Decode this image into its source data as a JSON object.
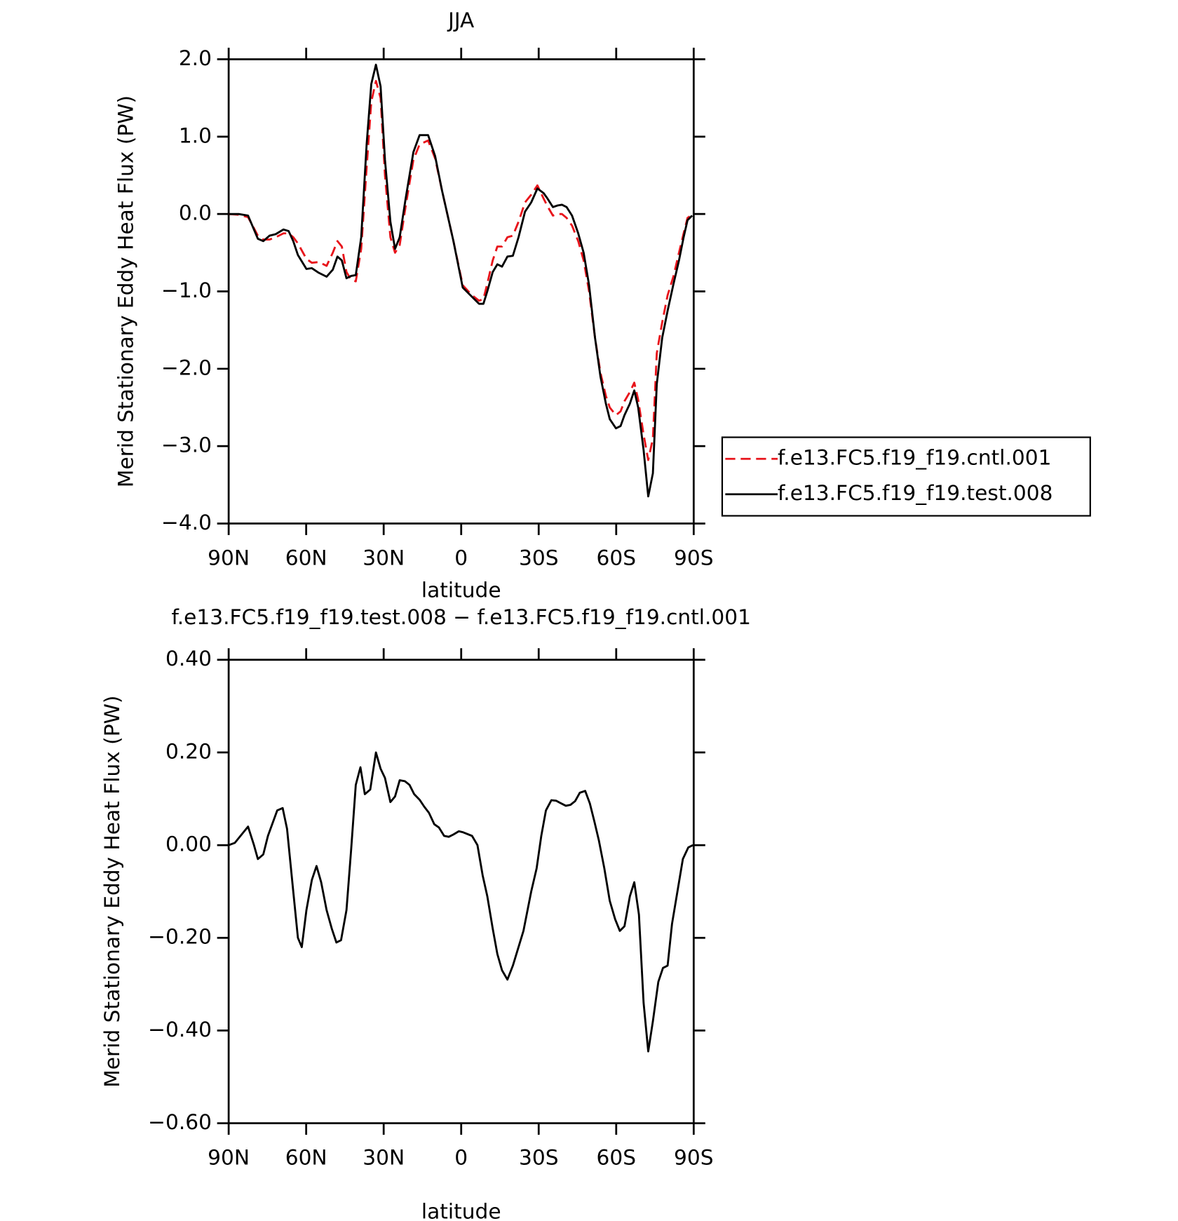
{
  "chart_data": [
    {
      "type": "line",
      "title": "JJA",
      "xlabel": "latitude",
      "ylabel": "Merid Stationary Eddy Heat Flux (PW)",
      "legend": "right",
      "xlim": [
        90,
        -90
      ],
      "xticks": [
        {
          "value": 90,
          "label": "90N"
        },
        {
          "value": 60,
          "label": "60N"
        },
        {
          "value": 30,
          "label": "30N"
        },
        0,
        {
          "value": -30,
          "label": "30S"
        },
        {
          "value": -60,
          "label": "60S"
        },
        {
          "value": -90,
          "label": "90S"
        }
      ],
      "ylim": [
        -4,
        2
      ],
      "yticks": [
        {
          "value": 2,
          "label": "2.0"
        },
        {
          "value": 1,
          "label": "1.0"
        },
        {
          "value": 0,
          "label": "0.0"
        },
        {
          "value": -1,
          "label": "−1.0"
        },
        {
          "value": -2,
          "label": "−2.0"
        },
        {
          "value": -3,
          "label": "−3.0"
        },
        {
          "value": -4,
          "label": "−4.0"
        }
      ],
      "x": [
        90,
        86.1,
        82.5,
        78.7,
        76.6,
        74.2,
        71.8,
        68.8,
        66.8,
        65.0,
        63.2,
        59.9,
        57.8,
        55.1,
        52.1,
        49.7,
        47.9,
        46.2,
        44.4,
        42.6,
        40.8,
        38.7,
        36.6,
        34.8,
        33.0,
        31.2,
        29.5,
        27.4,
        25.6,
        23.8,
        21.5,
        18.5,
        16.1,
        12.8,
        10.1,
        7.4,
        3.0,
        -0.6,
        -4.2,
        -6.9,
        -8.6,
        -10.1,
        -12.2,
        -14.0,
        -15.8,
        -17.9,
        -20.0,
        -22.2,
        -24.7,
        -27.1,
        -29.5,
        -31.9,
        -33.4,
        -35.5,
        -37.3,
        -39.0,
        -40.8,
        -42.9,
        -45.3,
        -47.4,
        -49.5,
        -51.8,
        -53.9,
        -56.0,
        -57.5,
        -59.9,
        -61.7,
        -63.2,
        -65.3,
        -67.0,
        -68.5,
        -70.6,
        -72.4,
        -74.2,
        -75.7,
        -77.8,
        -79.9,
        -82.2,
        -84.3,
        -86.1,
        -87.6,
        -89.4
      ],
      "series": [
        {
          "name": "f.e13.FC5.f19_f19.cntl.001",
          "color": "#e8141b",
          "style": "dashed",
          "values": [
            0,
            -0.01,
            -0.04,
            -0.28,
            -0.33,
            -0.33,
            -0.3,
            -0.25,
            -0.25,
            -0.3,
            -0.38,
            -0.58,
            -0.63,
            -0.62,
            -0.67,
            -0.5,
            -0.35,
            -0.42,
            -0.75,
            -0.85,
            -0.87,
            -0.45,
            0.6,
            1.45,
            1.72,
            1.5,
            0.5,
            -0.3,
            -0.5,
            -0.4,
            0.1,
            0.7,
            0.9,
            0.95,
            0.72,
            0.3,
            -0.35,
            -0.92,
            -1.05,
            -1.12,
            -1.1,
            -0.9,
            -0.6,
            -0.42,
            -0.42,
            -0.3,
            -0.28,
            -0.1,
            0.15,
            0.25,
            0.37,
            0.2,
            0.1,
            -0.02,
            0.0,
            0.0,
            -0.05,
            -0.15,
            -0.35,
            -0.6,
            -1.0,
            -1.6,
            -2.05,
            -2.35,
            -2.5,
            -2.6,
            -2.55,
            -2.42,
            -2.3,
            -2.18,
            -2.4,
            -2.85,
            -3.18,
            -2.9,
            -1.8,
            -1.4,
            -1.05,
            -0.8,
            -0.5,
            -0.25,
            -0.05,
            -0.01
          ]
        },
        {
          "name": "f.e13.FC5.f19_f19.test.008",
          "color": "#000000",
          "style": "solid",
          "values": [
            0,
            0.0,
            -0.02,
            -0.32,
            -0.35,
            -0.28,
            -0.26,
            -0.2,
            -0.22,
            -0.35,
            -0.53,
            -0.71,
            -0.7,
            -0.76,
            -0.81,
            -0.72,
            -0.55,
            -0.6,
            -0.83,
            -0.8,
            -0.79,
            -0.3,
            0.9,
            1.68,
            1.93,
            1.65,
            0.7,
            -0.1,
            -0.45,
            -0.3,
            0.2,
            0.8,
            1.02,
            1.02,
            0.75,
            0.3,
            -0.35,
            -0.95,
            -1.07,
            -1.16,
            -1.16,
            -1.0,
            -0.75,
            -0.65,
            -0.68,
            -0.55,
            -0.54,
            -0.3,
            0.03,
            0.15,
            0.33,
            0.27,
            0.2,
            0.09,
            0.11,
            0.12,
            0.09,
            -0.02,
            -0.25,
            -0.5,
            -0.92,
            -1.6,
            -2.1,
            -2.45,
            -2.65,
            -2.77,
            -2.74,
            -2.6,
            -2.45,
            -2.28,
            -2.5,
            -3.05,
            -3.65,
            -3.35,
            -2.2,
            -1.6,
            -1.25,
            -0.9,
            -0.6,
            -0.3,
            -0.08,
            -0.02
          ]
        }
      ]
    },
    {
      "type": "line",
      "title": "f.e13.FC5.f19_f19.test.008 − f.e13.FC5.f19_f19.cntl.001",
      "xlabel": "latitude",
      "ylabel": "Merid Stationary Eddy Heat Flux (PW)",
      "xlim": [
        90,
        -90
      ],
      "xticks": [
        {
          "value": 90,
          "label": "90N"
        },
        {
          "value": 60,
          "label": "60N"
        },
        {
          "value": 30,
          "label": "30N"
        },
        0,
        {
          "value": -30,
          "label": "30S"
        },
        {
          "value": -60,
          "label": "60S"
        },
        {
          "value": -90,
          "label": "90S"
        }
      ],
      "ylim": [
        -0.6,
        0.4
      ],
      "yticks": [
        {
          "value": 0.4,
          "label": "0.40"
        },
        {
          "value": 0.2,
          "label": "0.20"
        },
        {
          "value": 0,
          "label": "0.00"
        },
        {
          "value": -0.2,
          "label": "−0.20"
        },
        {
          "value": -0.4,
          "label": "−0.40"
        },
        {
          "value": -0.6,
          "label": "−0.60"
        }
      ],
      "x": [
        90,
        87.6,
        82.5,
        80.2,
        78.7,
        76.6,
        74.8,
        71.2,
        69.1,
        67.4,
        65.0,
        63.2,
        61.7,
        59.9,
        57.8,
        56.0,
        54.2,
        52.1,
        50.1,
        48.3,
        46.5,
        44.4,
        42.6,
        40.8,
        39.0,
        37.3,
        35.2,
        33.0,
        31.2,
        29.5,
        27.4,
        25.6,
        23.8,
        21.8,
        20.0,
        18.2,
        16.1,
        14.3,
        12.5,
        10.4,
        8.6,
        6.6,
        4.8,
        3.0,
        0.9,
        -0.6,
        -4.2,
        -6.3,
        -8.3,
        -10.1,
        -12.2,
        -14.0,
        -15.8,
        -17.9,
        -20.0,
        -24.1,
        -27.1,
        -29.2,
        -31.0,
        -32.8,
        -34.9,
        -36.7,
        -38.4,
        -40.5,
        -42.3,
        -44.1,
        -45.9,
        -48.0,
        -49.8,
        -51.6,
        -53.3,
        -55.4,
        -57.5,
        -59.6,
        -61.4,
        -63.2,
        -65.3,
        -67.0,
        -68.8,
        -70.6,
        -72.4,
        -74.2,
        -76.3,
        -78.1,
        -79.9,
        -81.6,
        -83.7,
        -85.8,
        -87.9,
        -89.7
      ],
      "series": [
        {
          "color": "#000000",
          "style": "solid",
          "values": [
            0.0,
            0.005,
            0.04,
            0.0,
            -0.03,
            -0.02,
            0.02,
            0.075,
            0.08,
            0.035,
            -0.1,
            -0.2,
            -0.22,
            -0.14,
            -0.075,
            -0.045,
            -0.08,
            -0.14,
            -0.18,
            -0.21,
            -0.205,
            -0.14,
            -0.01,
            0.13,
            0.168,
            0.11,
            0.12,
            0.2,
            0.165,
            0.145,
            0.093,
            0.105,
            0.14,
            0.138,
            0.13,
            0.11,
            0.098,
            0.083,
            0.07,
            0.045,
            0.038,
            0.02,
            0.018,
            0.023,
            0.03,
            0.028,
            0.02,
            0.0,
            -0.065,
            -0.11,
            -0.18,
            -0.235,
            -0.27,
            -0.29,
            -0.26,
            -0.185,
            -0.1,
            -0.05,
            0.02,
            0.075,
            0.097,
            0.096,
            0.091,
            0.085,
            0.087,
            0.095,
            0.113,
            0.117,
            0.09,
            0.05,
            0.01,
            -0.05,
            -0.12,
            -0.16,
            -0.185,
            -0.175,
            -0.11,
            -0.08,
            -0.15,
            -0.34,
            -0.445,
            -0.38,
            -0.295,
            -0.265,
            -0.26,
            -0.17,
            -0.1,
            -0.03,
            -0.005,
            0.0
          ]
        }
      ]
    }
  ]
}
